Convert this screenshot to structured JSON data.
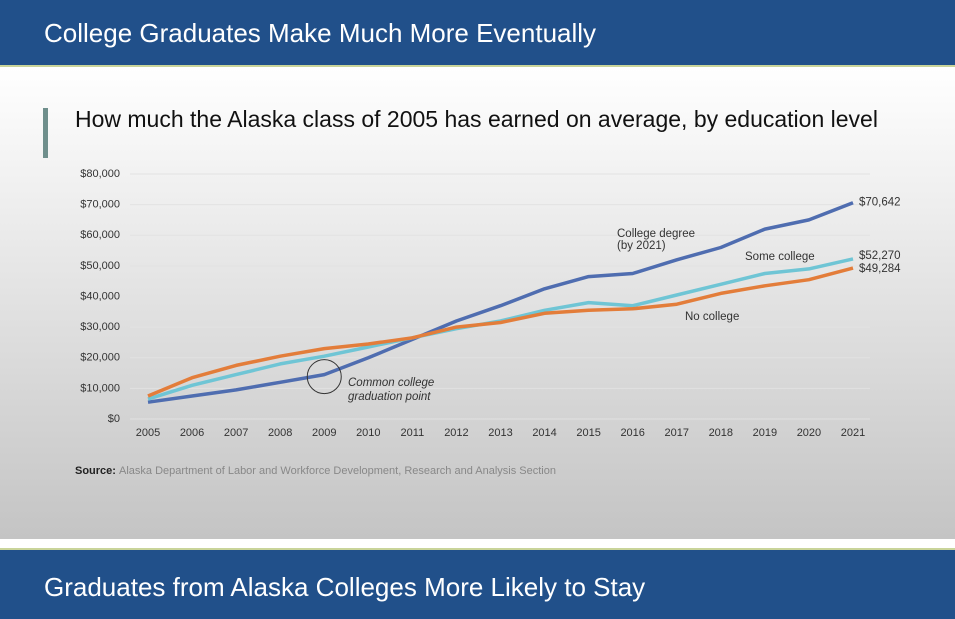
{
  "header": {
    "title": "College Graduates Make Much More Eventually"
  },
  "footer": {
    "title": "Graduates from Alaska Colleges More Likely to Stay"
  },
  "chart_data": {
    "type": "line",
    "title": "How much the Alaska class of 2005 has earned on average, by education level",
    "categories": [
      "2005",
      "2006",
      "2007",
      "2008",
      "2009",
      "2010",
      "2011",
      "2012",
      "2013",
      "2014",
      "2015",
      "2016",
      "2017",
      "2018",
      "2019",
      "2020",
      "2021"
    ],
    "series": [
      {
        "name": "College degree",
        "note": "(by 2021)",
        "color": "#4f6db0",
        "values": [
          5500,
          7500,
          9500,
          12000,
          14500,
          20000,
          26000,
          32000,
          37000,
          42500,
          46500,
          47500,
          52000,
          56000,
          62000,
          65000,
          70642
        ],
        "value_labels": [
          null,
          null,
          null,
          null,
          null,
          null,
          null,
          null,
          null,
          null,
          null,
          null,
          null,
          null,
          null,
          null,
          "$70,642"
        ]
      },
      {
        "name": "Some college",
        "color": "#6fc5d5",
        "values": [
          6500,
          11000,
          14500,
          18000,
          20500,
          23500,
          26500,
          29500,
          32000,
          35500,
          38000,
          37000,
          40500,
          44000,
          47500,
          49000,
          52270
        ],
        "value_labels": [
          null,
          null,
          null,
          null,
          null,
          null,
          null,
          null,
          null,
          null,
          null,
          null,
          null,
          null,
          null,
          null,
          "$52,270"
        ]
      },
      {
        "name": "No college",
        "color": "#e37d3a",
        "values": [
          7500,
          13500,
          17500,
          20500,
          23000,
          24500,
          26500,
          30000,
          31500,
          34500,
          35500,
          36000,
          37500,
          41000,
          43500,
          45500,
          49284
        ],
        "value_labels": [
          null,
          null,
          null,
          null,
          null,
          null,
          null,
          null,
          null,
          null,
          null,
          null,
          null,
          null,
          null,
          null,
          "$49,284"
        ]
      }
    ],
    "annotation": [
      "Common college",
      "graduation point"
    ],
    "ylim": [
      0,
      80000
    ],
    "yticks": [
      {
        "value": 0,
        "label": "$0"
      },
      {
        "value": 10000,
        "label": "$10,000"
      },
      {
        "value": 20000,
        "label": "$20,000"
      },
      {
        "value": 30000,
        "label": "$30,000"
      },
      {
        "value": 40000,
        "label": "$40,000"
      },
      {
        "value": 50000,
        "label": "$50,000"
      },
      {
        "value": 60000,
        "label": "$60,000"
      },
      {
        "value": 70000,
        "label": "$70,000"
      },
      {
        "value": 80000,
        "label": "$80,000"
      }
    ],
    "grid": true,
    "source_label": "Source:",
    "source": "Alaska Department of Labor and Workforce Development, Research and Analysis Section"
  }
}
